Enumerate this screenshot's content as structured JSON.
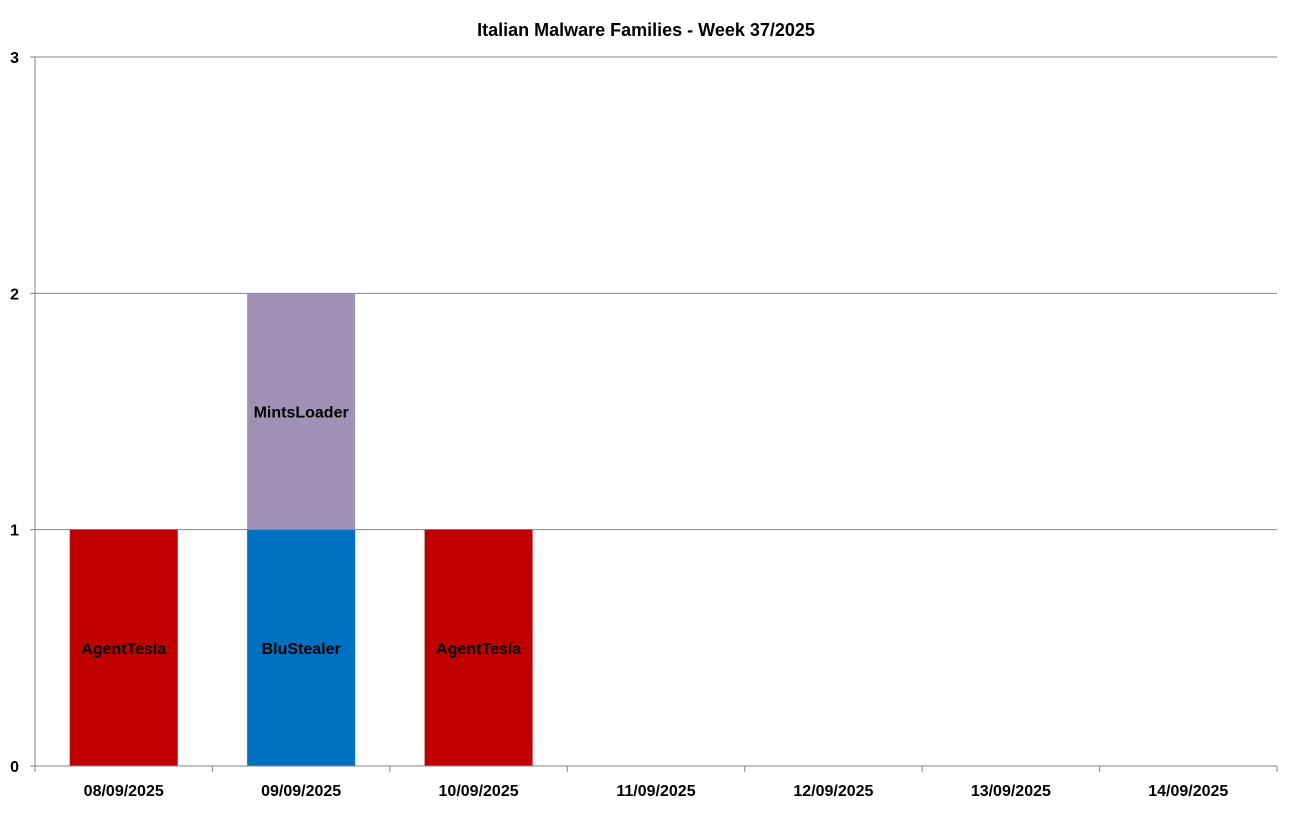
{
  "chart_data": {
    "type": "bar",
    "stacked": true,
    "title": "Italian Malware Families - Week 37/2025",
    "xlabel": "",
    "ylabel": "",
    "ylim": [
      0,
      3
    ],
    "yticks": [
      "0",
      "1",
      "2",
      "3"
    ],
    "grid": true,
    "legend": "none",
    "categories": [
      "08/09/2025",
      "09/09/2025",
      "10/09/2025",
      "11/09/2025",
      "12/09/2025",
      "13/09/2025",
      "14/09/2025"
    ],
    "stacks": [
      [
        {
          "family": "AgentTesla",
          "value": 1,
          "color": "#C00000"
        }
      ],
      [
        {
          "family": "BluStealer",
          "value": 1,
          "color": "#0070C0"
        },
        {
          "family": "MintsLoader",
          "value": 1,
          "color": "#A092B7"
        }
      ],
      [
        {
          "family": "AgentTesla",
          "value": 1,
          "color": "#C00000"
        }
      ],
      [],
      [],
      [],
      []
    ]
  }
}
